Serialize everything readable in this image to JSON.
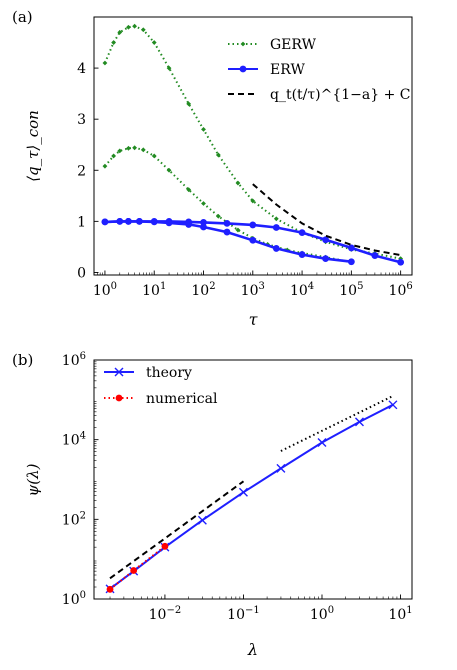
{
  "chart_data": [
    {
      "type": "line",
      "panel_label": "(a)",
      "xlabel": "τ",
      "ylabel": "⟨q_τ⟩_con",
      "xscale": "log",
      "yscale": "linear",
      "xlim": [
        0.6,
        1700000
      ],
      "ylim": [
        -0.05,
        5.0
      ],
      "xticks": [
        {
          "value": 1,
          "label": "10^0"
        },
        {
          "value": 10,
          "label": "10^1"
        },
        {
          "value": 100,
          "label": "10^2"
        },
        {
          "value": 1000,
          "label": "10^3"
        },
        {
          "value": 10000,
          "label": "10^4"
        },
        {
          "value": 100000,
          "label": "10^5"
        },
        {
          "value": 1000000,
          "label": "10^6"
        }
      ],
      "yticks": [
        {
          "value": 0,
          "label": "0"
        },
        {
          "value": 1,
          "label": "1"
        },
        {
          "value": 2,
          "label": "2"
        },
        {
          "value": 3,
          "label": "3"
        },
        {
          "value": 4,
          "label": "4"
        }
      ],
      "legend_position": "top-right",
      "legend": [
        {
          "label": "GERW",
          "color": "#228b22",
          "style": "dotted-diamond"
        },
        {
          "label": "ERW",
          "color": "#1f1fff",
          "style": "solid-circle"
        },
        {
          "label": "q_t(t/τ)^{1−a} + C",
          "color": "#000000",
          "style": "dashed"
        }
      ],
      "series": [
        {
          "name": "GERW",
          "color": "#228b22",
          "style": "dotted-diamond",
          "x": [
            1,
            1.5,
            2,
            3,
            4,
            6,
            10,
            20,
            50,
            100,
            200,
            500,
            1000,
            3000,
            10000,
            30000,
            100000,
            300000,
            1000000
          ],
          "values": [
            4.1,
            4.5,
            4.7,
            4.8,
            4.82,
            4.75,
            4.5,
            4.0,
            3.3,
            2.8,
            2.3,
            1.75,
            1.4,
            1.05,
            0.78,
            0.6,
            0.45,
            0.37,
            0.27
          ]
        },
        {
          "color": "#228b22",
          "style": "dotted-diamond",
          "x": [
            1,
            1.5,
            2,
            3,
            4,
            6,
            10,
            20,
            50,
            100,
            200,
            500,
            1000,
            2000,
            5000,
            10000,
            30000,
            100000
          ],
          "values": [
            2.08,
            2.28,
            2.38,
            2.43,
            2.44,
            2.4,
            2.28,
            2.0,
            1.62,
            1.35,
            1.1,
            0.83,
            0.67,
            0.55,
            0.44,
            0.38,
            0.3,
            0.2
          ]
        },
        {
          "name": "ERW",
          "color": "#1f1fff",
          "style": "solid-circle",
          "x": [
            1,
            2,
            3,
            5,
            10,
            20,
            50,
            100,
            300,
            1000,
            3000,
            10000,
            30000,
            100000,
            300000,
            1000000
          ],
          "values": [
            0.99,
            1.0,
            1.0,
            1.0,
            1.0,
            1.0,
            0.99,
            0.98,
            0.96,
            0.93,
            0.88,
            0.78,
            0.64,
            0.48,
            0.33,
            0.2
          ]
        },
        {
          "color": "#1f1fff",
          "style": "solid-circle",
          "x": [
            1,
            2,
            3,
            5,
            10,
            20,
            50,
            100,
            300,
            1000,
            3000,
            10000,
            30000,
            100000
          ],
          "values": [
            0.99,
            1.0,
            1.0,
            1.0,
            0.99,
            0.97,
            0.94,
            0.89,
            0.79,
            0.63,
            0.47,
            0.35,
            0.27,
            0.21
          ]
        },
        {
          "name": "q_t(t/τ)^{1−a} + C",
          "color": "#000000",
          "style": "dashed",
          "x": [
            1000,
            3000,
            10000,
            30000,
            100000,
            300000,
            1000000
          ],
          "values": [
            1.73,
            1.33,
            0.96,
            0.72,
            0.54,
            0.43,
            0.34
          ]
        }
      ]
    },
    {
      "type": "line",
      "panel_label": "(b)",
      "xlabel": "λ",
      "ylabel": "ψ(λ)",
      "xscale": "log",
      "yscale": "log",
      "xlim": [
        0.00125,
        14
      ],
      "ylim": [
        1,
        1000000
      ],
      "xticks": [
        {
          "value": 0.01,
          "label": "10^-2"
        },
        {
          "value": 0.1,
          "label": "10^-1"
        },
        {
          "value": 1,
          "label": "10^0"
        },
        {
          "value": 10,
          "label": "10^1"
        }
      ],
      "yticks": [
        {
          "value": 1,
          "label": "10^0"
        },
        {
          "value": 100,
          "label": "10^2"
        },
        {
          "value": 10000,
          "label": "10^4"
        },
        {
          "value": 1000000,
          "label": "10^6"
        }
      ],
      "legend_position": "top-left",
      "legend": [
        {
          "label": "theory",
          "color": "#1f1fff",
          "style": "solid-x"
        },
        {
          "label": "numerical",
          "color": "#ff0000",
          "style": "dotted-circle"
        }
      ],
      "series": [
        {
          "name": "theory",
          "color": "#1f1fff",
          "style": "solid-x",
          "x": [
            0.002,
            0.004,
            0.01,
            0.03,
            0.1,
            0.3,
            1,
            3,
            8
          ],
          "values": [
            1.8,
            5,
            20,
            95,
            480,
            1900,
            8500,
            28000,
            75000
          ]
        },
        {
          "name": "numerical",
          "color": "#ff0000",
          "style": "dotted-circle",
          "x": [
            0.002,
            0.004,
            0.01
          ],
          "values": [
            1.75,
            5.2,
            21
          ]
        },
        {
          "color": "#000000",
          "style": "dashed",
          "x": [
            0.002,
            0.1
          ],
          "values": [
            3.3,
            900
          ]
        },
        {
          "color": "#000000",
          "style": "dotted",
          "x": [
            0.3,
            8
          ],
          "values": [
            5200,
            125000
          ]
        }
      ]
    }
  ]
}
